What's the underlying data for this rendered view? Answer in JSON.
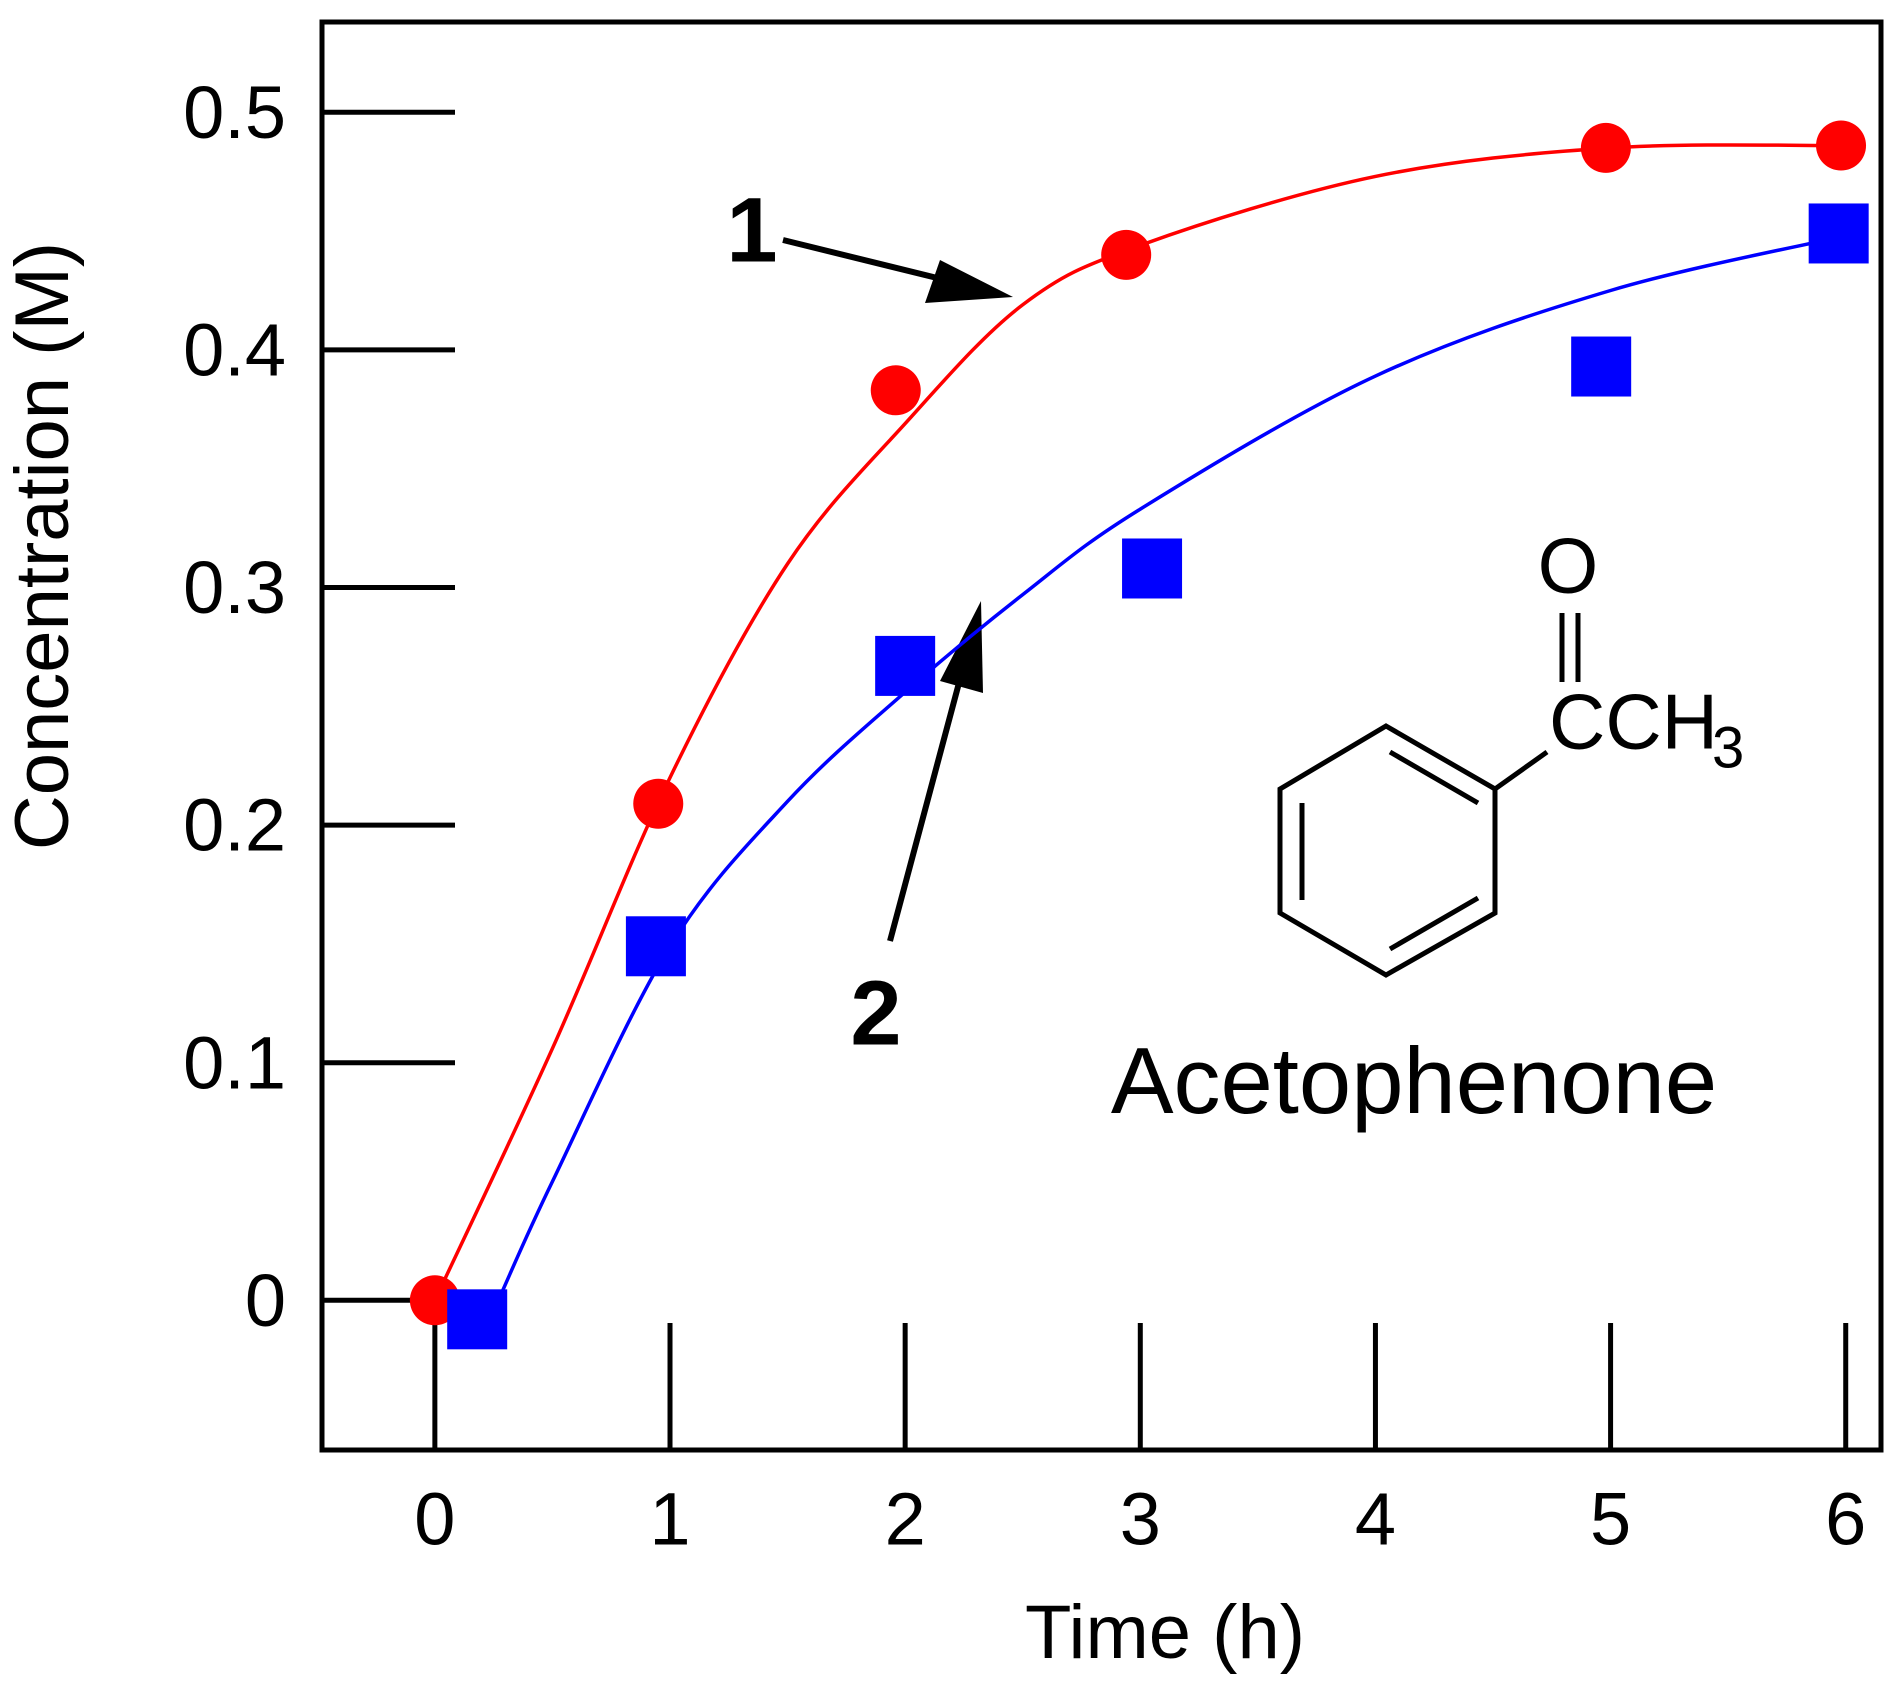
{
  "chart_data": {
    "type": "scatter",
    "x_label": "Time (h)",
    "y_label": "Concentration (M)",
    "xlim": [
      -0.48,
      6.15
    ],
    "ylim": [
      -0.063,
      0.538
    ],
    "xticks": [
      0,
      1,
      2,
      3,
      4,
      5,
      6
    ],
    "yticks": [
      0,
      0.1,
      0.2,
      0.3,
      0.4,
      0.5
    ],
    "series": [
      {
        "name": "1",
        "color": "#ff0000",
        "marker": "circle",
        "x": [
          0,
          0.95,
          1.96,
          2.94,
          4.98,
          5.98
        ],
        "values": [
          0,
          0.209,
          0.383,
          0.44,
          0.485,
          0.486
        ],
        "fit": {
          "x": [
            0,
            0.5,
            1,
            1.5,
            2,
            2.5,
            3,
            4,
            5,
            6
          ],
          "values": [
            0,
            0.106,
            0.22,
            0.31,
            0.369,
            0.419,
            0.444,
            0.473,
            0.485,
            0.486
          ]
        }
      },
      {
        "name": "2",
        "color": "#0000ff",
        "marker": "square",
        "x": [
          0.18,
          0.94,
          2.0,
          3.05,
          4.96,
          5.97
        ],
        "values": [
          -0.008,
          0.149,
          0.267,
          0.308,
          0.393,
          0.449
        ],
        "fit": {
          "x": [
            0.27,
            0.5,
            1,
            1.5,
            2,
            2.5,
            3,
            4,
            5,
            6
          ],
          "values": [
            0,
            0.05,
            0.149,
            0.21,
            0.256,
            0.297,
            0.333,
            0.389,
            0.425,
            0.448
          ]
        }
      }
    ],
    "annotations": {
      "compound": "Acetophenone",
      "oxygen": "O",
      "group": "CCH",
      "subscript": "3"
    }
  }
}
